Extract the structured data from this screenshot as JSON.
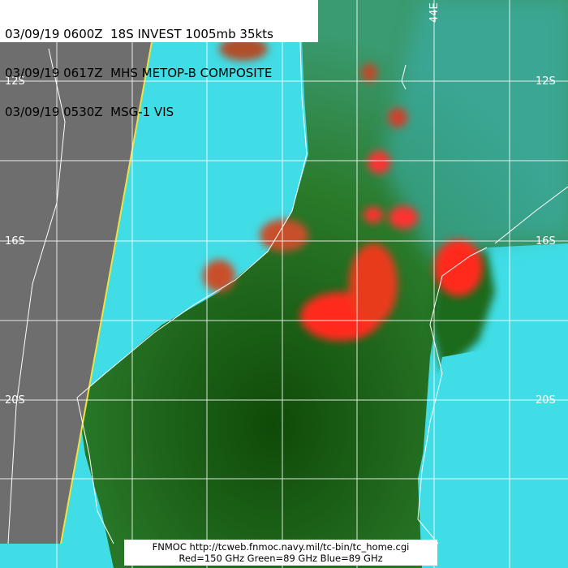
{
  "header": {
    "lines": [
      "03/09/19 0600Z  18S INVEST 1005mb 35kts",
      "03/09/19 0617Z  MHS METOP-B COMPOSITE",
      "03/09/19 0530Z  MSG-1 VIS"
    ]
  },
  "footer": {
    "line1": "FNMOC  http://tcweb.fnmoc.navy.mil/tc-bin/tc_home.cgi",
    "line2": "Red=150 GHz  Green=89 GHz Blue=89 GHz"
  },
  "grid_labels": {
    "lat_12_left": "12S",
    "lat_12_right": "12S",
    "lat_16_left": "16S",
    "lat_16_right": "16S",
    "lat_20_left": "20S",
    "lat_20_right": "20S",
    "lon_44": "44E"
  },
  "colors": {
    "ocean": "#3fe0e8",
    "land": "#1d6a10",
    "convection": "#ff2a1a",
    "swath_edge": "#f0e040",
    "vis": "#7a7a7a"
  }
}
